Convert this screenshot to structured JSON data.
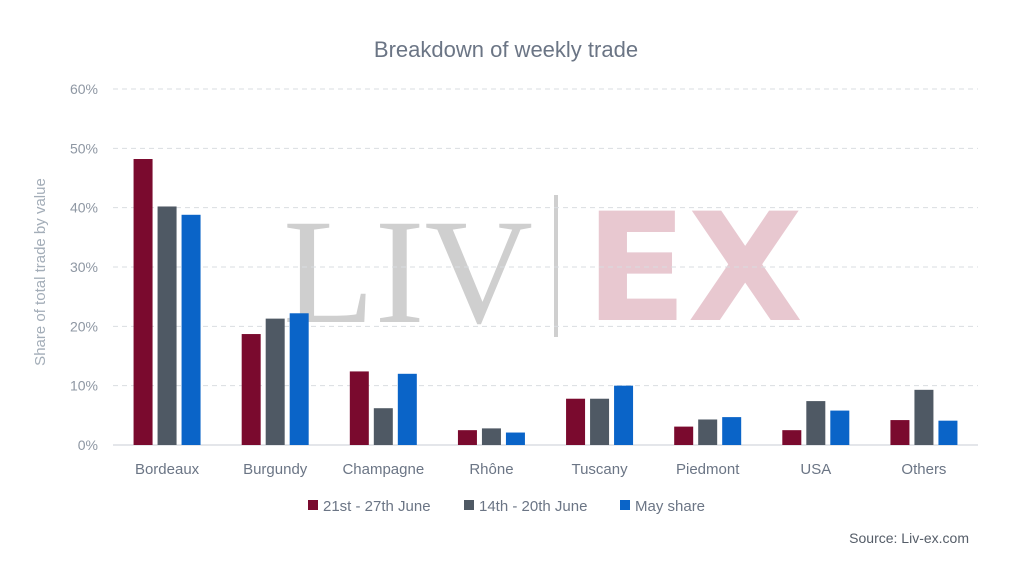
{
  "chart_data": {
    "type": "bar",
    "title": "Breakdown of weekly trade",
    "ylabel": "Share of total trade by value",
    "xlabel": "",
    "ylim": [
      0,
      60
    ],
    "yticks": [
      "0%",
      "10%",
      "20%",
      "30%",
      "40%",
      "50%",
      "60%"
    ],
    "grid": true,
    "legend_position": "bottom",
    "categories": [
      "Bordeaux",
      "Burgundy",
      "Champagne",
      "Rhône",
      "Tuscany",
      "Piedmont",
      "USA",
      "Others"
    ],
    "series": [
      {
        "name": "21st - 27th June",
        "color": "#7a0a2e",
        "values": [
          48.2,
          18.7,
          12.4,
          2.5,
          7.8,
          3.1,
          2.5,
          4.2
        ]
      },
      {
        "name": "14th - 20th June",
        "color": "#4f5964",
        "values": [
          40.2,
          21.3,
          6.2,
          2.8,
          7.8,
          4.3,
          7.4,
          9.3
        ]
      },
      {
        "name": "May share",
        "color": "#0a64c8",
        "values": [
          38.8,
          22.2,
          12.0,
          2.1,
          10.0,
          4.7,
          5.8,
          4.1
        ]
      }
    ],
    "source": "Source: Liv-ex.com",
    "watermark": {
      "left": "LIV",
      "right": "EX"
    }
  }
}
